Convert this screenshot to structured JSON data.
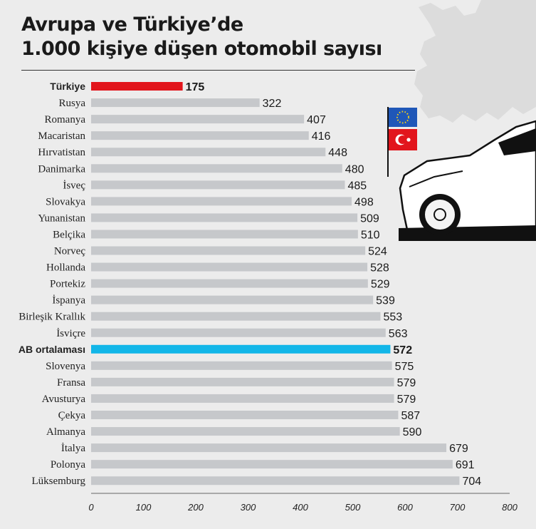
{
  "title_lines": [
    "Avrupa ve Türkiye’de",
    "1.000 kişiye düşen otomobil sayısı"
  ],
  "colors": {
    "bar": "#c6c8cb",
    "turkey": "#e2151c",
    "eu_average": "#12b6e8",
    "map": "#dcdcdc"
  },
  "icons": [
    "europe-map",
    "eu-flag-icon",
    "turkey-flag-icon",
    "car-illustration"
  ],
  "chart_data": {
    "type": "bar",
    "orientation": "horizontal",
    "title": "Avrupa ve Türkiye’de 1.000 kişiye düşen otomobil sayısı",
    "categories": [
      "Türkiye",
      "Rusya",
      "Romanya",
      "Macaristan",
      "Hırvatistan",
      "Danimarka",
      "İsveç",
      "Slovakya",
      "Yunanistan",
      "Belçika",
      "Norveç",
      "Hollanda",
      "Portekiz",
      "İspanya",
      "Birleşik Krallık",
      "İsviçre",
      "AB ortalaması",
      "Slovenya",
      "Fransa",
      "Avusturya",
      "Çekya",
      "Almanya",
      "İtalya",
      "Polonya",
      "Lüksemburg"
    ],
    "values": [
      175,
      322,
      407,
      416,
      448,
      480,
      485,
      498,
      509,
      510,
      524,
      528,
      529,
      539,
      553,
      563,
      572,
      575,
      579,
      579,
      587,
      590,
      679,
      691,
      704
    ],
    "highlight": {
      "Türkiye": "turkey",
      "AB ortalaması": "eu_average"
    },
    "xlim": [
      0,
      800
    ],
    "xticks": [
      0,
      100,
      200,
      300,
      400,
      500,
      600,
      700,
      800
    ],
    "xlabel": "",
    "ylabel": "",
    "grid": false,
    "legend": "none"
  }
}
